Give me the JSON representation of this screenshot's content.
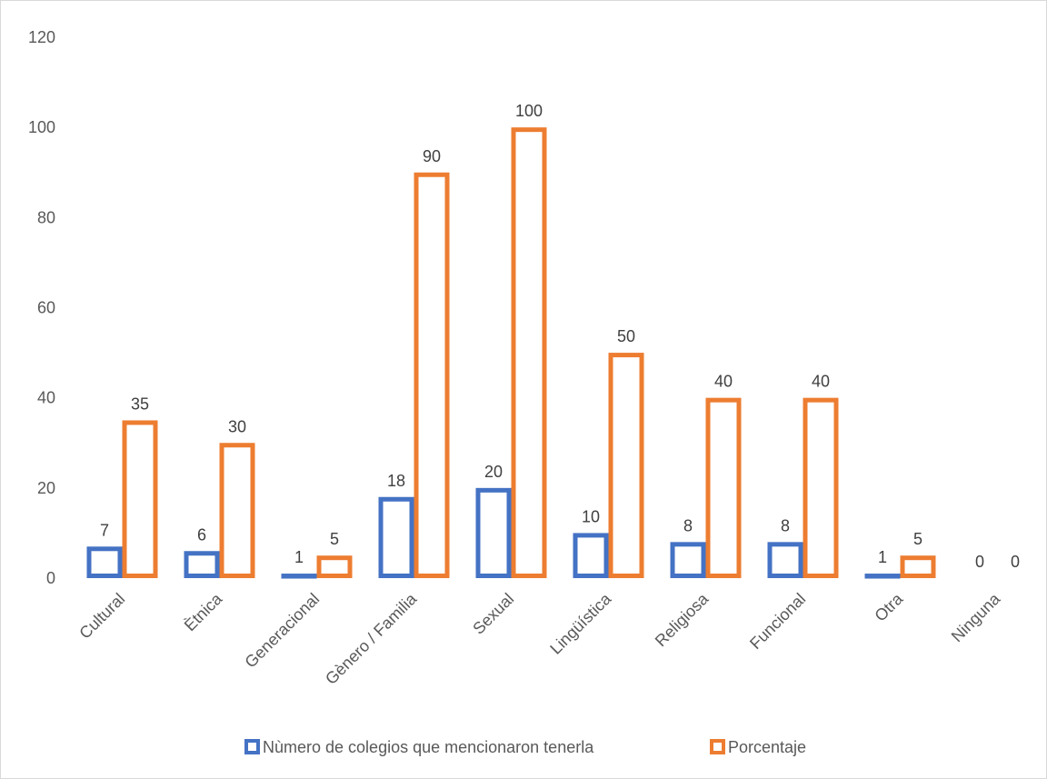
{
  "chart_data": {
    "type": "bar",
    "title": "",
    "xlabel": "",
    "ylabel": "",
    "ylim": [
      0,
      120
    ],
    "yticks": [
      0,
      20,
      40,
      60,
      80,
      100,
      120
    ],
    "grid": false,
    "legend_position": "bottom",
    "categories": [
      "Cultural",
      "Ètnica",
      "Generacional",
      "Gènero / Familia",
      "Sexual",
      "Lingüística",
      "Religiosa",
      "Funcional",
      "Otra",
      "Ninguna"
    ],
    "series": [
      {
        "name": "Nùmero de colegios que mencionaron tenerla",
        "color": "#4472c4",
        "values": [
          7,
          6,
          1,
          18,
          20,
          10,
          8,
          8,
          1,
          0
        ]
      },
      {
        "name": "Porcentaje",
        "color": "#ed7d31",
        "values": [
          35,
          30,
          5,
          90,
          100,
          50,
          40,
          40,
          5,
          0
        ]
      }
    ]
  }
}
